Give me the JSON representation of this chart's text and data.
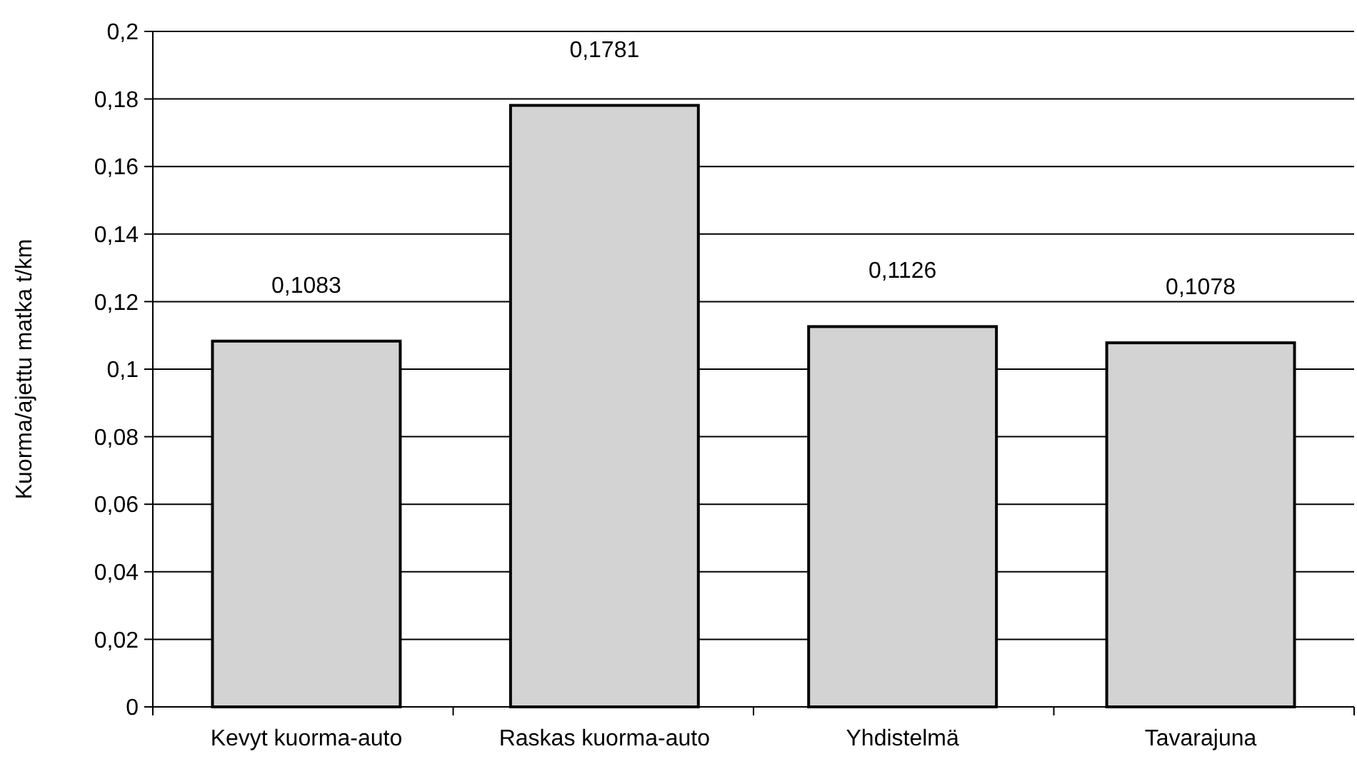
{
  "chart_data": {
    "type": "bar",
    "ylabel": "Kuorma/ajettu matka t/km",
    "categories": [
      "Kevyt kuorma-auto",
      "Raskas kuorma-auto",
      "Yhdistelmä",
      "Tavarajuna"
    ],
    "values": [
      0.1083,
      0.1781,
      0.1126,
      0.1078
    ],
    "value_labels": [
      "0,1083",
      "0,1781",
      "0,1126",
      "0,1078"
    ],
    "color": "#d3d3d3",
    "ylim": [
      0,
      0.2
    ],
    "yticks": [
      {
        "value": 0,
        "label": "0"
      },
      {
        "value": 0.02,
        "label": "0,02"
      },
      {
        "value": 0.04,
        "label": "0,04"
      },
      {
        "value": 0.06,
        "label": "0,06"
      },
      {
        "value": 0.08,
        "label": "0,08"
      },
      {
        "value": 0.1,
        "label": "0,1"
      },
      {
        "value": 0.12,
        "label": "0,12"
      },
      {
        "value": 0.14,
        "label": "0,14"
      },
      {
        "value": 0.16,
        "label": "0,16"
      },
      {
        "value": 0.18,
        "label": "0,18"
      },
      {
        "value": 0.2,
        "label": "0,2"
      }
    ],
    "grid": "y"
  }
}
